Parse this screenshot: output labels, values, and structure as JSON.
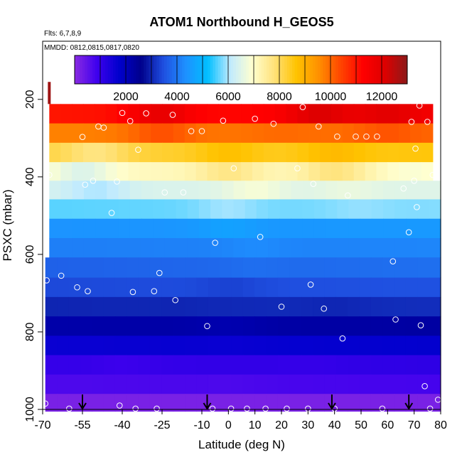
{
  "chart_data": {
    "type": "heatmap",
    "title": "ATOM1 Northbound H_GEOS5",
    "notes": [
      "Flts: 6,7,8,9",
      "MMDD: 0812,0815,0817,0820"
    ],
    "xlabel": "Latitude (deg N)",
    "ylabel": "PSXC (mbar)",
    "xlim": [
      -70,
      80
    ],
    "ylim": [
      1000,
      0
    ],
    "x_ticks": [
      "-70",
      "-55",
      "-40",
      "-25",
      "-10",
      "0",
      "10",
      "20",
      "30",
      "40",
      "50",
      "60",
      "70",
      "80"
    ],
    "x_tick_values": [
      -70,
      -55,
      -40,
      -25,
      -10,
      0,
      10,
      20,
      30,
      40,
      50,
      60,
      70,
      80
    ],
    "y_ticks": [
      "200",
      "400",
      "600",
      "800",
      "1000"
    ],
    "y_tick_values": [
      200,
      400,
      600,
      800,
      1000
    ],
    "colorbar": {
      "min": 0,
      "max": 13000,
      "tick_values": [
        2000,
        4000,
        6000,
        8000,
        10000,
        12000
      ],
      "tick_labels": [
        "2000",
        "4000",
        "6000",
        "8000",
        "10000",
        "12000"
      ],
      "colors": [
        "#8a2be2",
        "#3f00ee",
        "#0000cd",
        "#00008b",
        "#1f4fe0",
        "#1e90ff",
        "#00bfff",
        "#bfeaff",
        "#ffffd0",
        "#ffe27a",
        "#ffc300",
        "#ff9000",
        "#ff4500",
        "#ff0000",
        "#dd0000",
        "#8b1a1a"
      ]
    },
    "bands": [
      {
        "p0": 212,
        "p1": 262,
        "left": [
          -67.5,
          11000
        ],
        "right": [
          77,
          11500
        ],
        "peaks": [
          [
            -25,
            12000
          ],
          [
            0,
            11200
          ],
          [
            35,
            12300
          ],
          [
            60,
            12100
          ]
        ]
      },
      {
        "p0": 262,
        "p1": 312,
        "left": [
          -67.5,
          9700
        ],
        "right": [
          77,
          10000
        ],
        "peaks": [
          [
            -25,
            10400
          ],
          [
            20,
            10000
          ],
          [
            60,
            10300
          ]
        ]
      },
      {
        "p0": 312,
        "p1": 362,
        "left": [
          -67.5,
          8200
        ],
        "right": [
          77,
          8600
        ],
        "peaks": [
          [
            -50,
            7600
          ],
          [
            0,
            8800
          ],
          [
            40,
            8900
          ]
        ]
      },
      {
        "p0": 362,
        "p1": 410,
        "left": [
          -67.5,
          7100
        ],
        "right": [
          77,
          7200
        ],
        "peaks": [
          [
            -55,
            6300
          ],
          [
            0,
            7800
          ],
          [
            40,
            7900
          ],
          [
            70,
            6800
          ]
        ]
      },
      {
        "p0": 410,
        "p1": 458,
        "left": [
          -67.5,
          6400
        ],
        "right": [
          80,
          6500
        ],
        "peaks": [
          [
            -50,
            5900
          ],
          [
            10,
            6900
          ],
          [
            45,
            6700
          ]
        ]
      },
      {
        "p0": 458,
        "p1": 508,
        "left": [
          -67.5,
          5600
        ],
        "right": [
          80,
          5800
        ],
        "peaks": [
          [
            0,
            6000
          ],
          [
            50,
            5900
          ]
        ]
      },
      {
        "p0": 508,
        "p1": 558,
        "left": [
          -67.5,
          4400
        ],
        "right": [
          80,
          4500
        ],
        "peaks": [
          [
            0,
            4700
          ]
        ]
      },
      {
        "p0": 558,
        "p1": 608,
        "left": [
          -67.5,
          4100
        ],
        "right": [
          80,
          4200
        ],
        "peaks": [
          [
            10,
            4300
          ]
        ]
      },
      {
        "p0": 608,
        "p1": 660,
        "left": [
          -69,
          3700
        ],
        "right": [
          80,
          3900
        ],
        "peaks": [
          [
            10,
            3900
          ]
        ]
      },
      {
        "p0": 660,
        "p1": 710,
        "left": [
          -69,
          3400
        ],
        "right": [
          80,
          3500
        ],
        "peaks": [
          [
            0,
            3300
          ]
        ]
      },
      {
        "p0": 710,
        "p1": 760,
        "left": [
          -69,
          3000
        ],
        "right": [
          80,
          3100
        ],
        "peaks": [
          [
            -20,
            3000
          ],
          [
            40,
            3000
          ]
        ]
      },
      {
        "p0": 760,
        "p1": 810,
        "left": [
          -69,
          2200
        ],
        "right": [
          80,
          2300
        ],
        "peaks": [
          [
            0,
            2100
          ]
        ]
      },
      {
        "p0": 810,
        "p1": 860,
        "left": [
          -69,
          1600
        ],
        "right": [
          80,
          1700
        ],
        "peaks": [
          [
            0,
            1600
          ]
        ]
      },
      {
        "p0": 860,
        "p1": 910,
        "left": [
          -69,
          1000
        ],
        "right": [
          80,
          1100
        ],
        "peaks": [
          [
            -40,
            900
          ],
          [
            30,
            1000
          ]
        ]
      },
      {
        "p0": 910,
        "p1": 960,
        "left": [
          -69,
          700
        ],
        "right": [
          80,
          800
        ],
        "peaks": [
          [
            0,
            700
          ]
        ]
      },
      {
        "p0": 960,
        "p1": 1005,
        "left": [
          -69,
          200
        ],
        "right": [
          80,
          200
        ],
        "peaks": []
      }
    ],
    "column_segment": {
      "lat": -67.5,
      "p0": 155,
      "p1": 212,
      "value": 12800
    },
    "points": [
      [
        -67.5,
        395
      ],
      [
        -68.5,
        667
      ],
      [
        -69,
        985
      ],
      [
        -63,
        655
      ],
      [
        -60,
        998
      ],
      [
        -57,
        685
      ],
      [
        -55,
        297
      ],
      [
        -54,
        420
      ],
      [
        -53,
        695
      ],
      [
        -51,
        410
      ],
      [
        -49,
        270
      ],
      [
        -47,
        273
      ],
      [
        -44,
        493
      ],
      [
        -42,
        412
      ],
      [
        -41,
        990
      ],
      [
        -40,
        235
      ],
      [
        -37,
        256
      ],
      [
        -36,
        697
      ],
      [
        -35,
        998
      ],
      [
        -34,
        330
      ],
      [
        -31,
        236
      ],
      [
        -28,
        695
      ],
      [
        -27,
        998
      ],
      [
        -26,
        648
      ],
      [
        -24,
        440
      ],
      [
        -21,
        240
      ],
      [
        -20,
        718
      ],
      [
        -17,
        440
      ],
      [
        -14,
        282
      ],
      [
        -10,
        282
      ],
      [
        -8,
        785
      ],
      [
        -6,
        998
      ],
      [
        -5,
        570
      ],
      [
        -2,
        255
      ],
      [
        1,
        998
      ],
      [
        2,
        378
      ],
      [
        7,
        998
      ],
      [
        10,
        250
      ],
      [
        12,
        555
      ],
      [
        14,
        998
      ],
      [
        17,
        263
      ],
      [
        20,
        735
      ],
      [
        22,
        998
      ],
      [
        26,
        378
      ],
      [
        28,
        220
      ],
      [
        30,
        998
      ],
      [
        31,
        678
      ],
      [
        32,
        418
      ],
      [
        34,
        270
      ],
      [
        36,
        740
      ],
      [
        40,
        998
      ],
      [
        41,
        296
      ],
      [
        43,
        817
      ],
      [
        45,
        448
      ],
      [
        48,
        296
      ],
      [
        52,
        296
      ],
      [
        56,
        296
      ],
      [
        58,
        998
      ],
      [
        62,
        618
      ],
      [
        63,
        768
      ],
      [
        66,
        430
      ],
      [
        68,
        543
      ],
      [
        69,
        258
      ],
      [
        70,
        410
      ],
      [
        70.5,
        327
      ],
      [
        71,
        478
      ],
      [
        72,
        216
      ],
      [
        72.5,
        783
      ],
      [
        74,
        940
      ],
      [
        75,
        258
      ],
      [
        76,
        998
      ],
      [
        77,
        395
      ],
      [
        79,
        975
      ]
    ],
    "arrows": [
      -55,
      -8,
      39,
      68
    ]
  }
}
